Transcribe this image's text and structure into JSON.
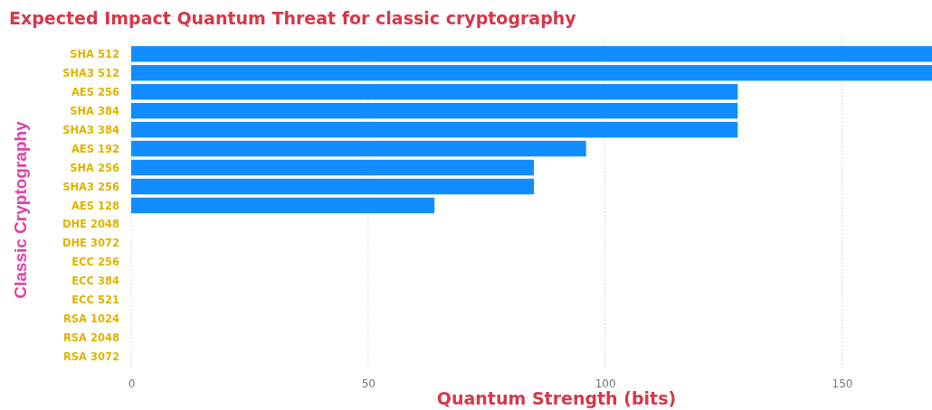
{
  "chart_data": {
    "type": "bar",
    "orientation": "horizontal",
    "title": "Expected Impact Quantum Threat for classic cryptography",
    "xlabel": "Quantum Strength (bits)",
    "ylabel": "Classic Cryptography",
    "categories": [
      "SHA 512",
      "SHA3 512",
      "AES 256",
      "SHA 384",
      "SHA3 384",
      "AES 192",
      "SHA 256",
      "SHA3 256",
      "AES 128",
      "DHE 2048",
      "DHE 3072",
      "ECC 256",
      "ECC 384",
      "ECC 521",
      "RSA 1024",
      "RSA 2048",
      "RSA 3072"
    ],
    "values": [
      169,
      169,
      128,
      128,
      128,
      96,
      85,
      85,
      64,
      0,
      0,
      0,
      0,
      0,
      0,
      0,
      0
    ],
    "color": "#118dff",
    "xlim": [
      0,
      169
    ],
    "xticks": [
      0,
      50,
      100,
      150
    ],
    "grid": "x"
  }
}
